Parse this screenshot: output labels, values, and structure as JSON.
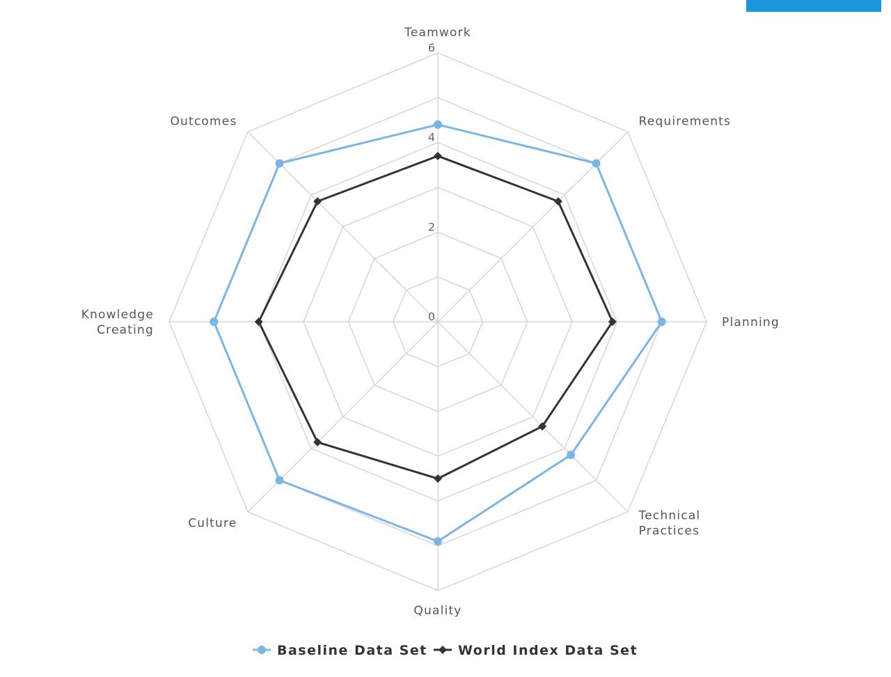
{
  "chart_data": {
    "type": "radar",
    "axes": [
      "Teamwork",
      "Requirements",
      "Planning",
      "Technical Practices",
      "Quality",
      "Culture",
      "Knowledge Creating",
      "Outcomes"
    ],
    "axis_label_lines": [
      [
        "Teamwork"
      ],
      [
        "Requirements"
      ],
      [
        "Planning"
      ],
      [
        "Technical",
        "Practices"
      ],
      [
        "Quality"
      ],
      [
        "Culture"
      ],
      [
        "Knowledge",
        "Creating"
      ],
      [
        "Outcomes"
      ]
    ],
    "rlim": [
      0,
      6
    ],
    "ticks": [
      0,
      2,
      4,
      6
    ],
    "tick_labels": [
      "0",
      "2",
      "4",
      "6"
    ],
    "grid": true,
    "legend_position": "bottom",
    "series": [
      {
        "name": "Baseline Data Set",
        "color": "#7ab5e6",
        "marker": "circle",
        "values": [
          4.4,
          5.0,
          5.0,
          4.2,
          4.9,
          5.0,
          5.0,
          5.0
        ]
      },
      {
        "name": "World Index Data Set",
        "color": "#333333",
        "marker": "diamond",
        "values": [
          3.7,
          3.8,
          3.9,
          3.3,
          3.5,
          3.8,
          4.0,
          3.8
        ]
      }
    ]
  },
  "colors": {
    "corner_button": "#1a96dc",
    "grid": "#d6d6d6"
  }
}
